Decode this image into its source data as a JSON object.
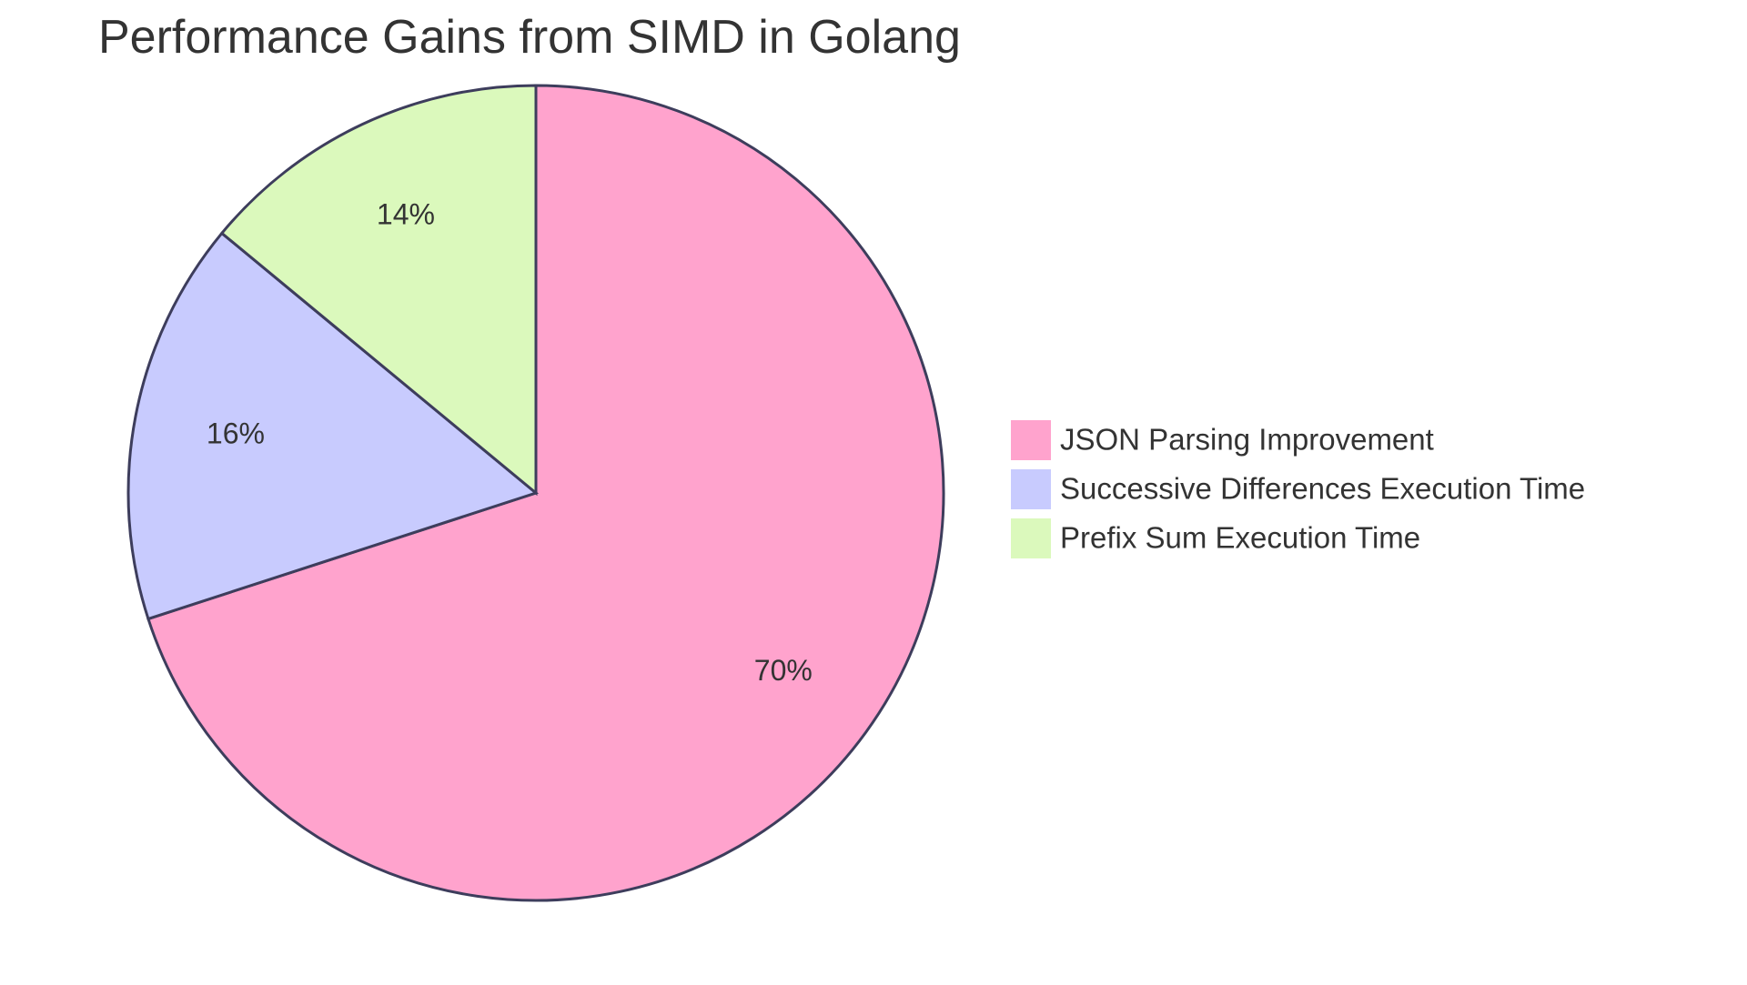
{
  "chart_data": {
    "type": "pie",
    "title": "Performance Gains from SIMD in Golang",
    "slices": [
      {
        "label": "JSON Parsing Improvement",
        "value": 70,
        "display": "70%",
        "color": "#FFA3CD"
      },
      {
        "label": "Successive Differences Execution Time",
        "value": 16,
        "display": "16%",
        "color": "#C8CBFE"
      },
      {
        "label": "Prefix Sum Execution Time",
        "value": 14,
        "display": "14%",
        "color": "#DBF9BC"
      }
    ],
    "legend_position": "right"
  }
}
